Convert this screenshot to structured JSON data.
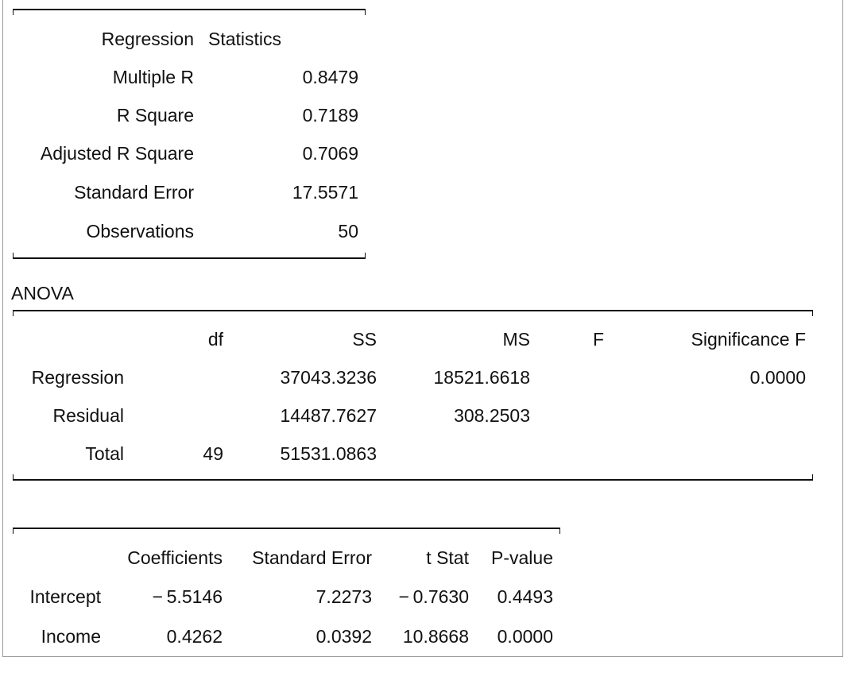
{
  "regression_statistics": {
    "header": [
      "Regression",
      "Statistics"
    ],
    "rows": [
      {
        "label": "Multiple R",
        "value": "0.8479"
      },
      {
        "label": "R Square",
        "value": "0.7189"
      },
      {
        "label": "Adjusted R Square",
        "value": "0.7069"
      },
      {
        "label": "Standard Error",
        "value": "17.5571"
      },
      {
        "label": "Observations",
        "value": "50"
      }
    ]
  },
  "anova": {
    "title": "ANOVA",
    "columns": [
      "df",
      "SS",
      "MS",
      "F",
      "Significance F"
    ],
    "rows": [
      {
        "label": "Regression",
        "df": "",
        "ss": "37043.3236",
        "ms": "18521.6618",
        "f": "",
        "sig_f": "0.0000"
      },
      {
        "label": "Residual",
        "df": "",
        "ss": "14487.7627",
        "ms": "308.2503",
        "f": "",
        "sig_f": ""
      },
      {
        "label": "Total",
        "df": "49",
        "ss": "51531.0863",
        "ms": "",
        "f": "",
        "sig_f": ""
      }
    ]
  },
  "coefficients": {
    "columns": [
      "Coefficients",
      "Standard Error",
      "t Stat",
      "P-value"
    ],
    "rows": [
      {
        "label": "Intercept",
        "coef": "− 5.5146",
        "se": "7.2273",
        "t": "− 0.7630",
        "p": "0.4493"
      },
      {
        "label": "Income",
        "coef": "0.4262",
        "se": "0.0392",
        "t": "10.8668",
        "p": "0.0000"
      }
    ]
  }
}
